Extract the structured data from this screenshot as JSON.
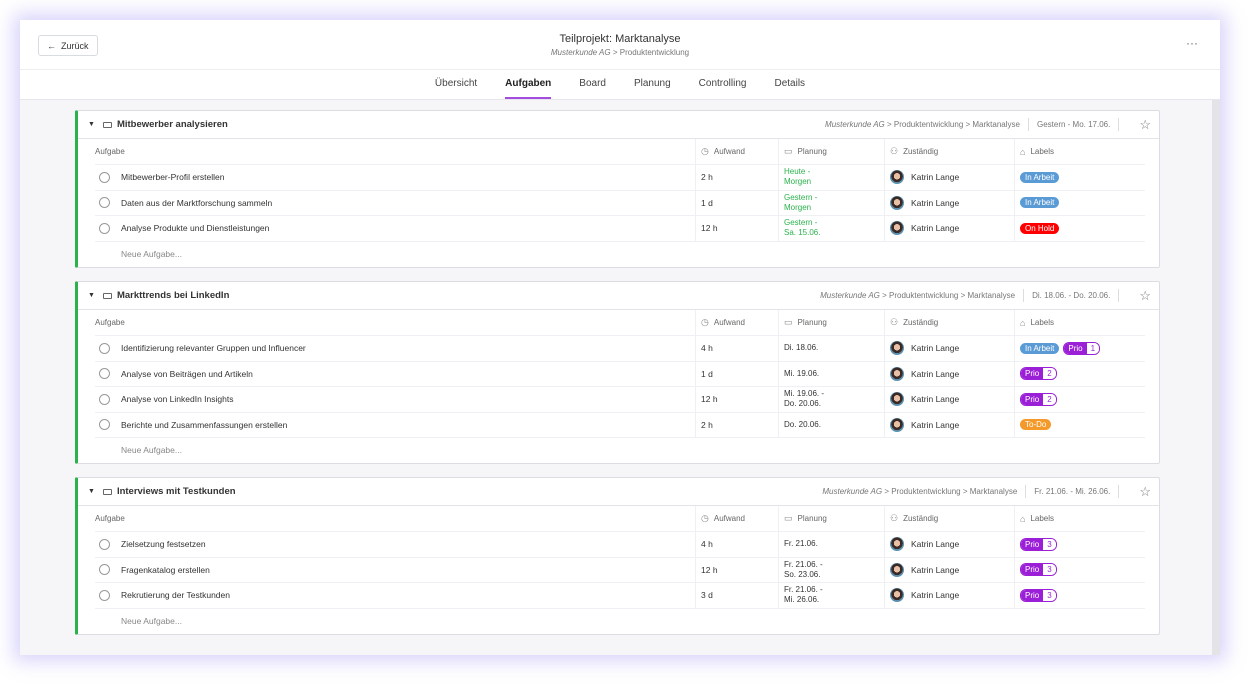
{
  "header": {
    "back_label": "Zurück",
    "title": "Teilprojekt: Marktanalyse",
    "breadcrumb_customer": "Musterkunde AG",
    "breadcrumb_sep": ">",
    "breadcrumb_project": "Produktentwicklung",
    "more": "···"
  },
  "tabs": [
    {
      "label": "Übersicht"
    },
    {
      "label": "Aufgaben",
      "active": true
    },
    {
      "label": "Board"
    },
    {
      "label": "Planung"
    },
    {
      "label": "Controlling"
    },
    {
      "label": "Details"
    }
  ],
  "columns": {
    "task": "Aufgabe",
    "effort": "Aufwand",
    "planning": "Planung",
    "assignee": "Zuständig",
    "labels": "Labels"
  },
  "new_task_placeholder": "Neue Aufgabe...",
  "colors": {
    "accent": "#a24ce0",
    "group_bar": "#2bb24c",
    "in_arbeit": "#5b9bd5",
    "on_hold": "#ff0000",
    "prio": "#9b1fd6",
    "todo": "#f39a2b"
  },
  "groups": [
    {
      "name": "Mitbewerber analysieren",
      "path_customer": "Musterkunde AG",
      "path": "> Produktentwicklung > Marktanalyse",
      "date": "Gestern - Mo. 17.06.",
      "tasks": [
        {
          "name": "Mitbewerber-Profil erstellen",
          "effort": "2 h",
          "plan": [
            "Heute -",
            "Morgen"
          ],
          "plan_green": true,
          "assignee": "Katrin Lange",
          "labels": [
            {
              "text": "In Arbeit",
              "type": "in_arbeit"
            }
          ]
        },
        {
          "name": "Daten aus der Marktforschung sammeln",
          "effort": "1 d",
          "plan": [
            "Gestern -",
            "Morgen"
          ],
          "plan_green": true,
          "assignee": "Katrin Lange",
          "labels": [
            {
              "text": "In Arbeit",
              "type": "in_arbeit"
            }
          ]
        },
        {
          "name": "Analyse Produkte und Dienstleistungen",
          "effort": "12 h",
          "plan": [
            "Gestern -",
            "Sa. 15.06."
          ],
          "plan_green": true,
          "assignee": "Katrin Lange",
          "labels": [
            {
              "text": "On Hold",
              "type": "on_hold"
            }
          ]
        }
      ]
    },
    {
      "name": "Markttrends bei LinkedIn",
      "path_customer": "Musterkunde AG",
      "path": "> Produktentwicklung > Marktanalyse",
      "date": "Di. 18.06. - Do. 20.06.",
      "tasks": [
        {
          "name": "Identifizierung relevanter Gruppen und Influencer",
          "effort": "4 h",
          "plan": [
            "Di. 18.06."
          ],
          "assignee": "Katrin Lange",
          "labels": [
            {
              "text": "In Arbeit",
              "type": "in_arbeit"
            },
            {
              "text": "Prio",
              "num": "1",
              "type": "prio"
            }
          ]
        },
        {
          "name": "Analyse von Beiträgen und Artikeln",
          "effort": "1 d",
          "plan": [
            "Mi. 19.06."
          ],
          "assignee": "Katrin Lange",
          "labels": [
            {
              "text": "Prio",
              "num": "2",
              "type": "prio"
            }
          ]
        },
        {
          "name": "Analyse von LinkedIn Insights",
          "effort": "12 h",
          "plan": [
            "Mi. 19.06. -",
            "Do. 20.06."
          ],
          "assignee": "Katrin Lange",
          "labels": [
            {
              "text": "Prio",
              "num": "2",
              "type": "prio"
            }
          ]
        },
        {
          "name": "Berichte und Zusammenfassungen erstellen",
          "effort": "2 h",
          "plan": [
            "Do. 20.06."
          ],
          "assignee": "Katrin Lange",
          "labels": [
            {
              "text": "To-Do",
              "type": "todo"
            }
          ]
        }
      ]
    },
    {
      "name": "Interviews mit Testkunden",
      "path_customer": "Musterkunde AG",
      "path": "> Produktentwicklung > Marktanalyse",
      "date": "Fr. 21.06. - Mi. 26.06.",
      "tasks": [
        {
          "name": "Zielsetzung festsetzen",
          "effort": "4 h",
          "plan": [
            "Fr. 21.06."
          ],
          "assignee": "Katrin Lange",
          "labels": [
            {
              "text": "Prio",
              "num": "3",
              "type": "prio"
            }
          ]
        },
        {
          "name": "Fragenkatalog erstellen",
          "effort": "12 h",
          "plan": [
            "Fr. 21.06. -",
            "So. 23.06."
          ],
          "assignee": "Katrin Lange",
          "labels": [
            {
              "text": "Prio",
              "num": "3",
              "type": "prio"
            }
          ]
        },
        {
          "name": "Rekrutierung der Testkunden",
          "effort": "3 d",
          "plan": [
            "Fr. 21.06. -",
            "Mi. 26.06."
          ],
          "assignee": "Katrin Lange",
          "labels": [
            {
              "text": "Prio",
              "num": "3",
              "type": "prio"
            }
          ]
        }
      ]
    }
  ]
}
